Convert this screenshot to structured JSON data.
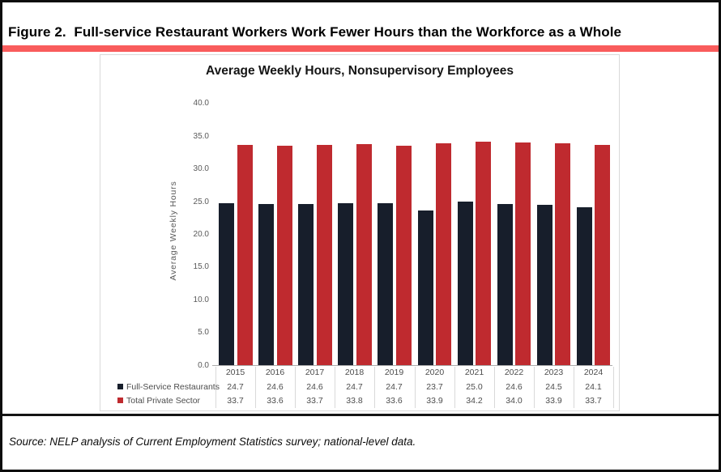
{
  "figure": {
    "title": "Figure 2.  Full-service Restaurant Workers Work Fewer Hours than the Workforce as a Whole",
    "source_note": "Source: NELP analysis of Current Employment Statistics survey; national-level data."
  },
  "chart_data": {
    "type": "bar",
    "title": "Average Weekly Hours, Nonsupervisory Employees",
    "xlabel": "",
    "ylabel": "Average Weekly Hours",
    "ylim": [
      0,
      40
    ],
    "ytick_step": 5,
    "ytick_decimals": 1,
    "grid": false,
    "legend_position": "bottom-left",
    "data_table_shown": true,
    "categories": [
      "2015",
      "2016",
      "2017",
      "2018",
      "2019",
      "2020",
      "2021",
      "2022",
      "2023",
      "2024"
    ],
    "series": [
      {
        "name": "Full-Service Restaurants",
        "color": "#171e2b",
        "values": [
          24.7,
          24.6,
          24.6,
          24.7,
          24.7,
          23.7,
          25.0,
          24.6,
          24.5,
          24.1
        ]
      },
      {
        "name": "Total Private Sector",
        "color": "#bf2a2f",
        "values": [
          33.7,
          33.6,
          33.7,
          33.8,
          33.6,
          33.9,
          34.2,
          34.0,
          33.9,
          33.7
        ]
      }
    ]
  },
  "colors": {
    "divider_bar": "#f95c5c",
    "chart_border": "#d9d9d9",
    "axis_line": "#ababab",
    "muted_text": "#595959"
  }
}
